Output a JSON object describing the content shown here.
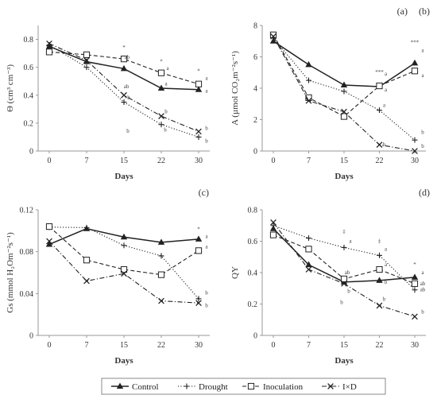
{
  "chart_data": [
    {
      "type": "line",
      "panel": "(a)",
      "ylabel": "Θ (cm³ cm⁻³)",
      "xlabel": "Days",
      "x": [
        0,
        7,
        15,
        22,
        30
      ],
      "ylim": [
        0,
        0.9
      ],
      "yticks": [
        "0",
        "0.2",
        "0.4",
        "0.6",
        "0.8"
      ],
      "series": [
        {
          "name": "Control",
          "values": [
            0.75,
            0.64,
            0.59,
            0.45,
            0.44
          ]
        },
        {
          "name": "Drought",
          "values": [
            0.76,
            0.6,
            0.35,
            0.19,
            0.1
          ]
        },
        {
          "name": "Inoculation",
          "values": [
            0.71,
            0.69,
            0.66,
            0.56,
            0.48
          ]
        },
        {
          "name": "I×D",
          "values": [
            0.77,
            0.65,
            0.4,
            0.25,
            0.14
          ]
        }
      ],
      "annotations": [
        {
          "text": "*",
          "x": 15,
          "y": 0.73
        },
        {
          "text": "ab",
          "x": 15,
          "y": 0.66,
          "dx": 4
        },
        {
          "text": "ab",
          "x": 15,
          "y": 0.45,
          "dx": 3
        },
        {
          "text": "b",
          "x": 15,
          "y": 0.37,
          "dx": 6
        },
        {
          "text": "b",
          "x": 15,
          "y": 0.13,
          "dx": 5
        },
        {
          "text": "*",
          "x": 22,
          "y": 0.63
        },
        {
          "text": "a",
          "x": 22,
          "y": 0.58,
          "dx": 8
        },
        {
          "text": "a",
          "x": 22,
          "y": 0.47,
          "dx": 6
        },
        {
          "text": "b",
          "x": 22,
          "y": 0.27,
          "dx": 6
        },
        {
          "text": "b",
          "x": 22,
          "y": 0.14,
          "dx": 5
        },
        {
          "text": "*",
          "x": 30,
          "y": 0.56
        },
        {
          "text": "a",
          "x": 30,
          "y": 0.51,
          "dx": 10
        },
        {
          "text": "a",
          "x": 30,
          "y": 0.42,
          "dx": 10
        },
        {
          "text": "b",
          "x": 30,
          "y": 0.15,
          "dx": 10
        },
        {
          "text": "b",
          "x": 30,
          "y": 0.06,
          "dx": 10
        }
      ]
    },
    {
      "type": "line",
      "panel": "(b)",
      "ylabel": "A (µmol CO₂m⁻²s⁻¹)",
      "xlabel": "Days",
      "x": [
        0,
        7,
        15,
        22,
        30
      ],
      "ylim": [
        0,
        8
      ],
      "yticks": [
        "0",
        "2",
        "4",
        "6",
        "8"
      ],
      "series": [
        {
          "name": "Control",
          "values": [
            7.0,
            5.5,
            4.2,
            4.1,
            5.6
          ]
        },
        {
          "name": "Drought",
          "values": [
            7.2,
            4.5,
            3.8,
            2.6,
            0.7
          ]
        },
        {
          "name": "Inoculation",
          "values": [
            7.4,
            3.4,
            2.2,
            4.15,
            5.1
          ]
        },
        {
          "name": "I×D",
          "values": [
            7.3,
            3.2,
            2.5,
            0.4,
            0.0
          ]
        }
      ],
      "annotations": [
        {
          "text": "***",
          "x": 22,
          "y": 4.9
        },
        {
          "text": "a",
          "x": 22,
          "y": 4.8,
          "dx": 8
        },
        {
          "text": "a",
          "x": 22,
          "y": 3.8,
          "dx": 8
        },
        {
          "text": "a",
          "x": 22,
          "y": 2.8,
          "dx": 6
        },
        {
          "text": "b",
          "x": 22,
          "y": 0.3,
          "dx": 6
        },
        {
          "text": "***",
          "x": 30,
          "y": 6.8
        },
        {
          "text": "a",
          "x": 30,
          "y": 6.3,
          "dx": 10
        },
        {
          "text": "a",
          "x": 30,
          "y": 4.7,
          "dx": 10
        },
        {
          "text": "b",
          "x": 30,
          "y": 1.1,
          "dx": 10
        },
        {
          "text": "b",
          "x": 30,
          "y": 0.2,
          "dx": 10
        }
      ]
    },
    {
      "type": "line",
      "panel": "(c)",
      "ylabel": "Gs (mmol H₂Om⁻²s⁻¹)",
      "xlabel": "Days",
      "x": [
        0,
        7,
        15,
        22,
        30
      ],
      "ylim": [
        0,
        0.12
      ],
      "yticks": [
        "0",
        "0.04",
        "0.08",
        "0.12"
      ],
      "series": [
        {
          "name": "Control",
          "values": [
            0.087,
            0.102,
            0.094,
            0.089,
            0.092
          ]
        },
        {
          "name": "Drought",
          "values": [
            0.1035,
            0.103,
            0.086,
            0.076,
            0.035
          ]
        },
        {
          "name": "Inoculation",
          "values": [
            0.104,
            0.072,
            0.063,
            0.058,
            0.081
          ]
        },
        {
          "name": "I×D",
          "values": [
            0.09,
            0.052,
            0.059,
            0.033,
            0.031
          ]
        }
      ],
      "annotations": [
        {
          "text": "*",
          "x": 30,
          "y": 0.1
        },
        {
          "text": "a",
          "x": 30,
          "y": 0.093,
          "dx": 10
        },
        {
          "text": "a",
          "x": 30,
          "y": 0.083,
          "dx": 10
        },
        {
          "text": "b",
          "x": 30,
          "y": 0.039,
          "dx": 10
        },
        {
          "text": "b",
          "x": 30,
          "y": 0.027,
          "dx": 10
        }
      ]
    },
    {
      "type": "line",
      "panel": "(d)",
      "ylabel": "QY",
      "xlabel": "Days",
      "x": [
        0,
        7,
        15,
        22,
        30
      ],
      "ylim": [
        0,
        0.8
      ],
      "yticks": [
        "0",
        "0.2",
        "0.4",
        "0.6",
        "0.8"
      ],
      "series": [
        {
          "name": "Control",
          "values": [
            0.68,
            0.45,
            0.34,
            0.35,
            0.37
          ]
        },
        {
          "name": "Drought",
          "values": [
            0.7,
            0.62,
            0.56,
            0.51,
            0.29
          ]
        },
        {
          "name": "Inoculation",
          "values": [
            0.64,
            0.55,
            0.36,
            0.42,
            0.33
          ]
        },
        {
          "name": "I×D",
          "values": [
            0.72,
            0.42,
            0.33,
            0.19,
            0.12
          ]
        }
      ],
      "annotations": [
        {
          "text": "‡",
          "x": 15,
          "y": 0.65
        },
        {
          "text": "a",
          "x": 15,
          "y": 0.59,
          "dx": 8
        },
        {
          "text": "ab",
          "x": 15,
          "y": 0.39,
          "dx": 4
        },
        {
          "text": "b",
          "x": 15,
          "y": 0.2,
          "dx": -3
        },
        {
          "text": "b",
          "x": 15,
          "y": 0.27,
          "dx": 6
        },
        {
          "text": "‡",
          "x": 22,
          "y": 0.59
        },
        {
          "text": "a",
          "x": 22,
          "y": 0.54,
          "dx": 8
        },
        {
          "text": "a",
          "x": 22,
          "y": 0.44,
          "dx": 8
        },
        {
          "text": "b",
          "x": 22,
          "y": 0.33,
          "dx": 8
        },
        {
          "text": "b",
          "x": 22,
          "y": 0.22,
          "dx": 6
        },
        {
          "text": "*",
          "x": 30,
          "y": 0.44
        },
        {
          "text": "a",
          "x": 30,
          "y": 0.39,
          "dx": 10
        },
        {
          "text": "ab",
          "x": 30,
          "y": 0.32,
          "dx": 10
        },
        {
          "text": "ab",
          "x": 30,
          "y": 0.28,
          "dx": 10
        },
        {
          "text": "b",
          "x": 30,
          "y": 0.14,
          "dx": 10
        }
      ]
    }
  ],
  "legend": {
    "items": [
      {
        "label": "Control",
        "marker": "triangle",
        "dash": "solid"
      },
      {
        "label": "Drought",
        "marker": "plus",
        "dash": "dotted"
      },
      {
        "label": "Inoculation",
        "marker": "square",
        "dash": "dashed"
      },
      {
        "label": "I×D",
        "marker": "cross",
        "dash": "dashdot"
      }
    ]
  },
  "colors": {
    "series": "#222222",
    "axis": "#999999",
    "text": "#333333"
  }
}
